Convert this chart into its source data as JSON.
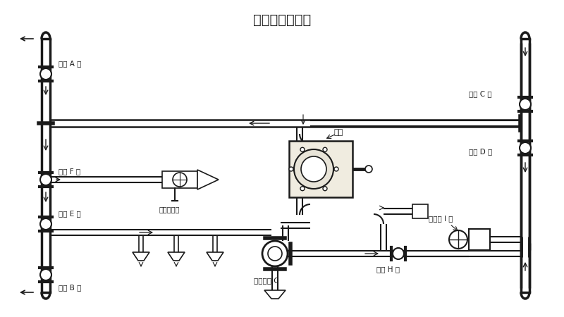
{
  "title": "洒水、浇灌花木",
  "bg_color": "#ffffff",
  "line_color": "#1a1a1a",
  "text_color": "#1a1a1a",
  "labels": {
    "ball_valve_A": "球阀 A 开",
    "ball_valve_B": "球阀 B 开",
    "ball_valve_C": "球阀 C 开",
    "ball_valve_D": "球阀 D 开",
    "ball_valve_E": "球阀 E 开",
    "ball_valve_F": "球阀 F 关",
    "ball_valve_H": "球阀 H 关",
    "three_way": "三通球阀 C",
    "hydrant_I": "消防栓 I 关",
    "water_pump": "水泵",
    "water_gun": "洒水炮出口"
  }
}
